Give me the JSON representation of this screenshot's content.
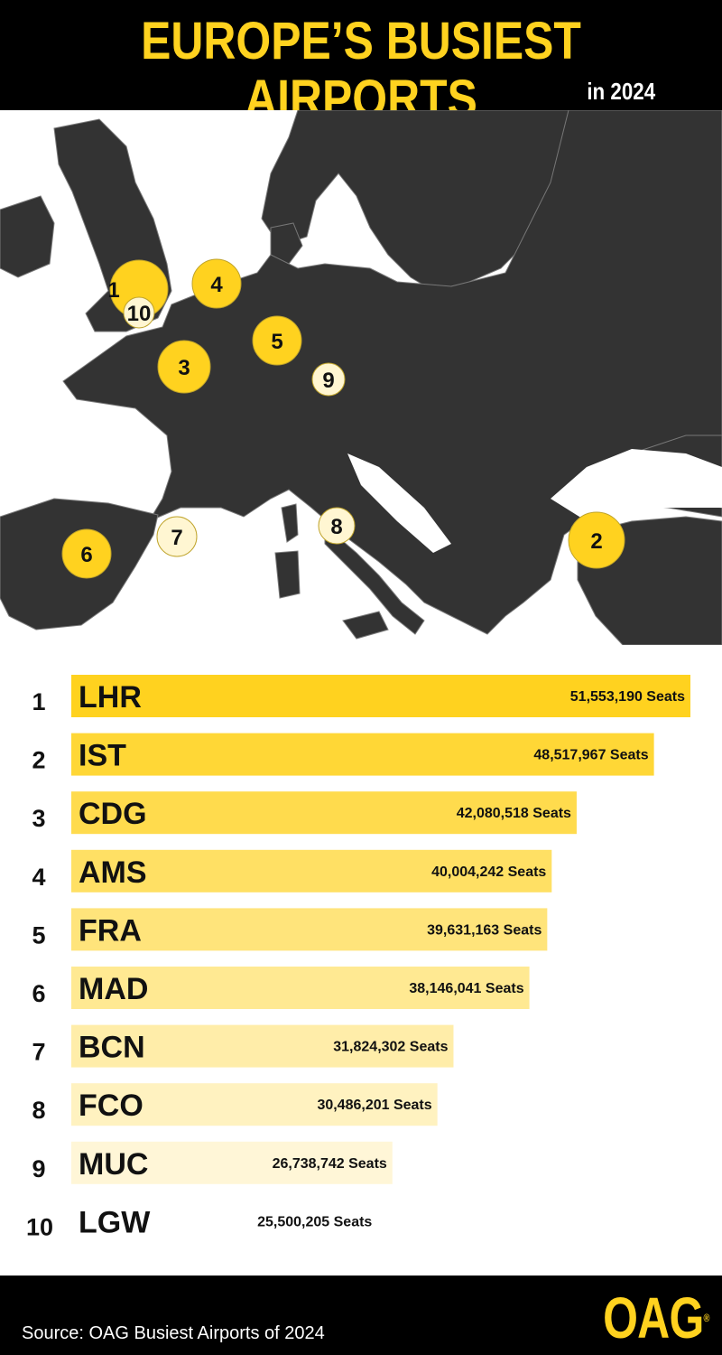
{
  "header": {
    "title": "EUROPE’S BUSIEST AIRPORTS",
    "subtitle": "in 2024"
  },
  "footer": {
    "source": "Source: OAG Busiest Airports of 2024",
    "logo": "OAG"
  },
  "colors": {
    "bar_top": "#ffd21f",
    "bar_bottom": "#fffbee",
    "land": "#333333",
    "sea": "#ffffff",
    "marker_yellow": "#ffd21f",
    "marker_light": "#fff6d2"
  },
  "map": {
    "markers": [
      {
        "label": "1",
        "style": "yellow"
      },
      {
        "label": "10",
        "style": "light"
      },
      {
        "label": "4",
        "style": "yellow"
      },
      {
        "label": "5",
        "style": "yellow"
      },
      {
        "label": "3",
        "style": "yellow"
      },
      {
        "label": "9",
        "style": "light"
      },
      {
        "label": "7",
        "style": "light"
      },
      {
        "label": "8",
        "style": "light"
      },
      {
        "label": "6",
        "style": "yellow"
      },
      {
        "label": "2",
        "style": "yellow"
      }
    ]
  },
  "chart_data": {
    "type": "bar",
    "orientation": "horizontal",
    "ranks": [
      "1",
      "2",
      "3",
      "4",
      "5",
      "6",
      "7",
      "8",
      "9",
      "10"
    ],
    "categories": [
      "LHR",
      "IST",
      "CDG",
      "AMS",
      "FRA",
      "MAD",
      "BCN",
      "FCO",
      "MUC",
      "LGW"
    ],
    "values": [
      51553190,
      48517967,
      42080518,
      40004242,
      39631163,
      38146041,
      31824302,
      30486201,
      26738742,
      25500205
    ],
    "value_labels": [
      "51,553,190 Seats",
      "48,517,967 Seats",
      "42,080,518 Seats",
      "40,004,242 Seats",
      "39,631,163 Seats",
      "38,146,041 Seats",
      "31,824,302 Seats",
      "30,486,201 Seats",
      "26,738,742 Seats",
      "25,500,205 Seats"
    ],
    "unit": "Seats"
  }
}
